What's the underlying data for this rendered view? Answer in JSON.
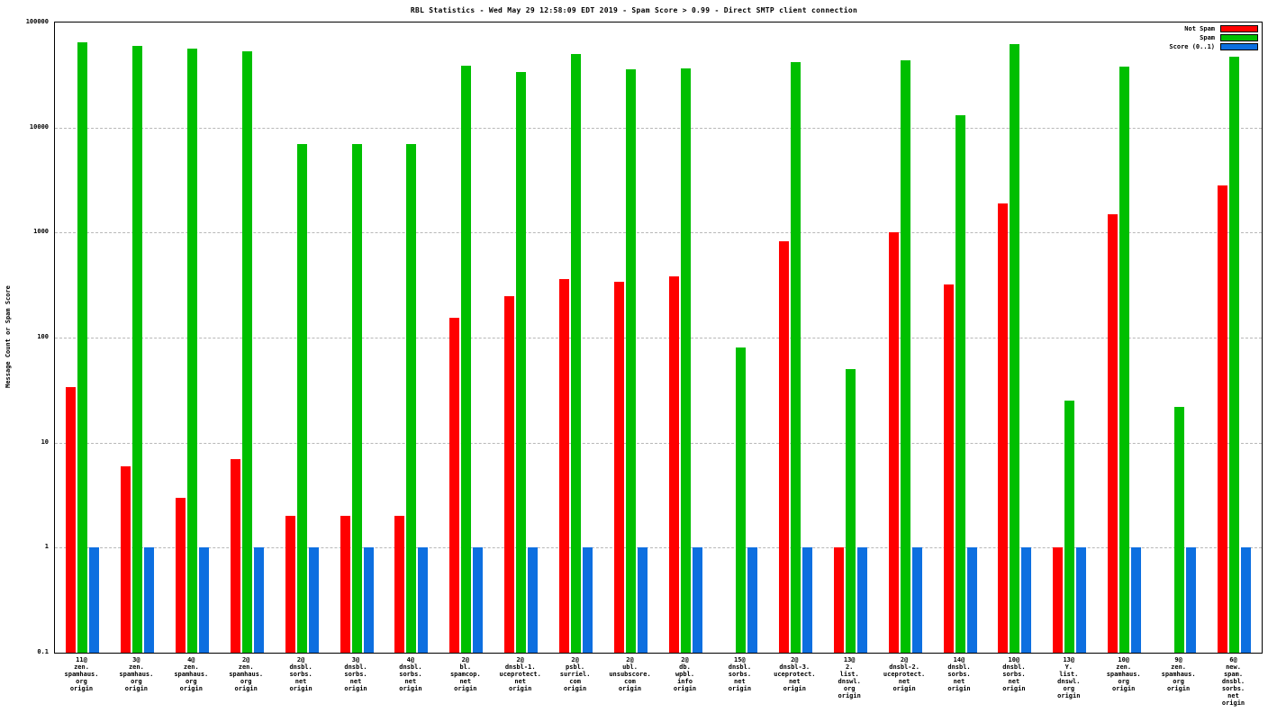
{
  "chart_data": {
    "type": "bar",
    "title": "RBL Statistics - Wed May 29 12:58:09 EDT 2019 - Spam Score > 0.99 - Direct SMTP client connection",
    "ylabel": "Message Count or Spam Score",
    "xlabel": "",
    "y_scale": "log",
    "ylim": [
      0.1,
      100000
    ],
    "y_ticks": [
      "100000",
      "10000",
      "1000",
      "100",
      "10",
      "1",
      "0.1"
    ],
    "grid": "horizontal-dashed",
    "legend_position": "top-right",
    "categories": [
      "11@\nzen.\nspamhaus.\norg\norigin",
      "3@\nzen.\nspamhaus.\norg\norigin",
      "4@\nzen.\nspamhaus.\norg\norigin",
      "2@\nzen.\nspamhaus.\norg\norigin",
      "2@\ndnsbl.\nsorbs.\nnet\norigin",
      "3@\ndnsbl.\nsorbs.\nnet\norigin",
      "4@\ndnsbl.\nsorbs.\nnet\norigin",
      "2@\nbl.\nspamcop.\nnet\norigin",
      "2@\ndnsbl-1.\nuceprotect.\nnet\norigin",
      "2@\npsbl.\nsurriel.\ncom\norigin",
      "2@\nubl.\nunsubscore.\ncom\norigin",
      "2@\ndb.\nwpbl.\ninfo\norigin",
      "15@\ndnsbl.\nsorbs.\nnet\norigin",
      "2@\ndnsbl-3.\nuceprotect.\nnet\norigin",
      "13@\n2.\nlist.\ndnswl.\norg\norigin",
      "2@\ndnsbl-2.\nuceprotect.\nnet\norigin",
      "14@\ndnsbl.\nsorbs.\nnet\norigin",
      "10@\ndnsbl.\nsorbs.\nnet\norigin",
      "13@\nY.\nlist.\ndnswl.\norg\norigin",
      "10@\nzen.\nspamhaus.\norg\norigin",
      "9@\nzen.\nspamhaus.\norg\norigin",
      "6@\nnew.\nspam.\ndnsbl.\nsorbs.\nnet\norigin"
    ],
    "series": [
      {
        "name": "Not Spam",
        "color": "#ff0000",
        "values": [
          34,
          6,
          3,
          7,
          2,
          2,
          2,
          155,
          250,
          360,
          340,
          380,
          0,
          820,
          1,
          1000,
          320,
          1900,
          1,
          1500,
          0,
          2800
        ]
      },
      {
        "name": "Spam",
        "color": "#00bf00",
        "values": [
          65000,
          60000,
          56000,
          53000,
          7000,
          7000,
          7000,
          39000,
          34000,
          50000,
          36000,
          36500,
          80,
          42000,
          50,
          44000,
          13000,
          62000,
          25,
          38000,
          22,
          47000
        ]
      },
      {
        "name": "Score (0..1)",
        "color": "#0d6fe0",
        "values": [
          1,
          1,
          1,
          1,
          1,
          1,
          1,
          1,
          1,
          1,
          1,
          1,
          1,
          1,
          1,
          1,
          1,
          1,
          1,
          1,
          1,
          1
        ]
      }
    ]
  }
}
